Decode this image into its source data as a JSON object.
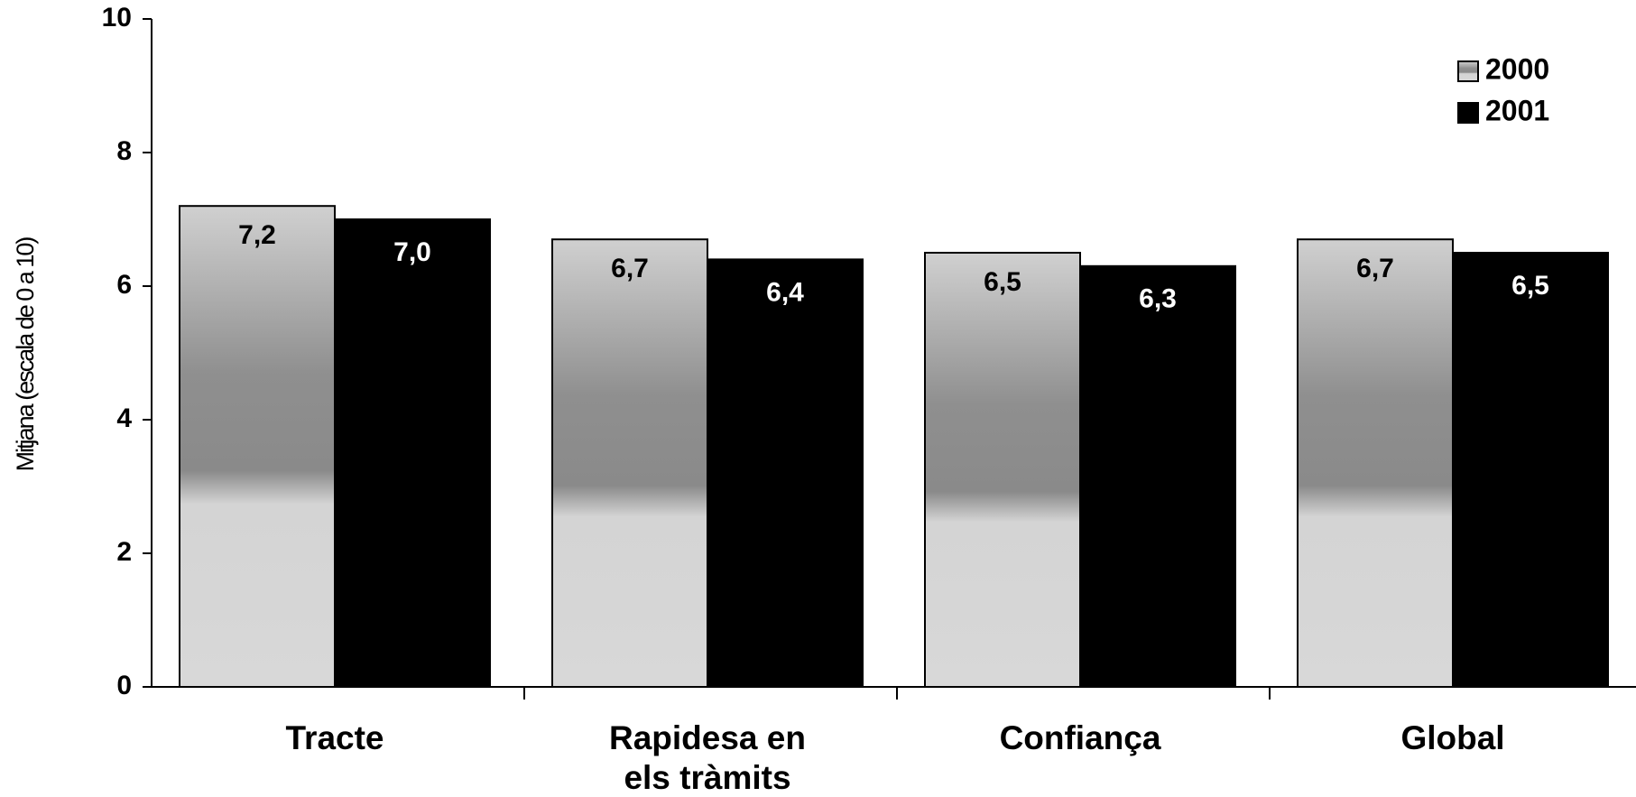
{
  "chart_data": {
    "type": "bar",
    "y_label": "Mitjana (escala de 0 a 10)",
    "categories": [
      "Tracte",
      "Rapidesa en els tràmits",
      "Confiança",
      "Global"
    ],
    "series": [
      {
        "name": "2000",
        "color": "#bcbcbc",
        "values": [
          7.2,
          6.7,
          6.5,
          6.7
        ],
        "value_labels": [
          "7,2",
          "6,7",
          "6,5",
          "6,7"
        ]
      },
      {
        "name": "2001",
        "color": "#000000",
        "values": [
          7.0,
          6.4,
          6.3,
          6.5
        ],
        "value_labels": [
          "7,0",
          "6,4",
          "6,3",
          "6,5"
        ]
      }
    ],
    "ylim": [
      0,
      10
    ],
    "yticks": [
      0,
      2,
      4,
      6,
      8,
      10
    ],
    "grid": false,
    "legend": "top-right"
  }
}
